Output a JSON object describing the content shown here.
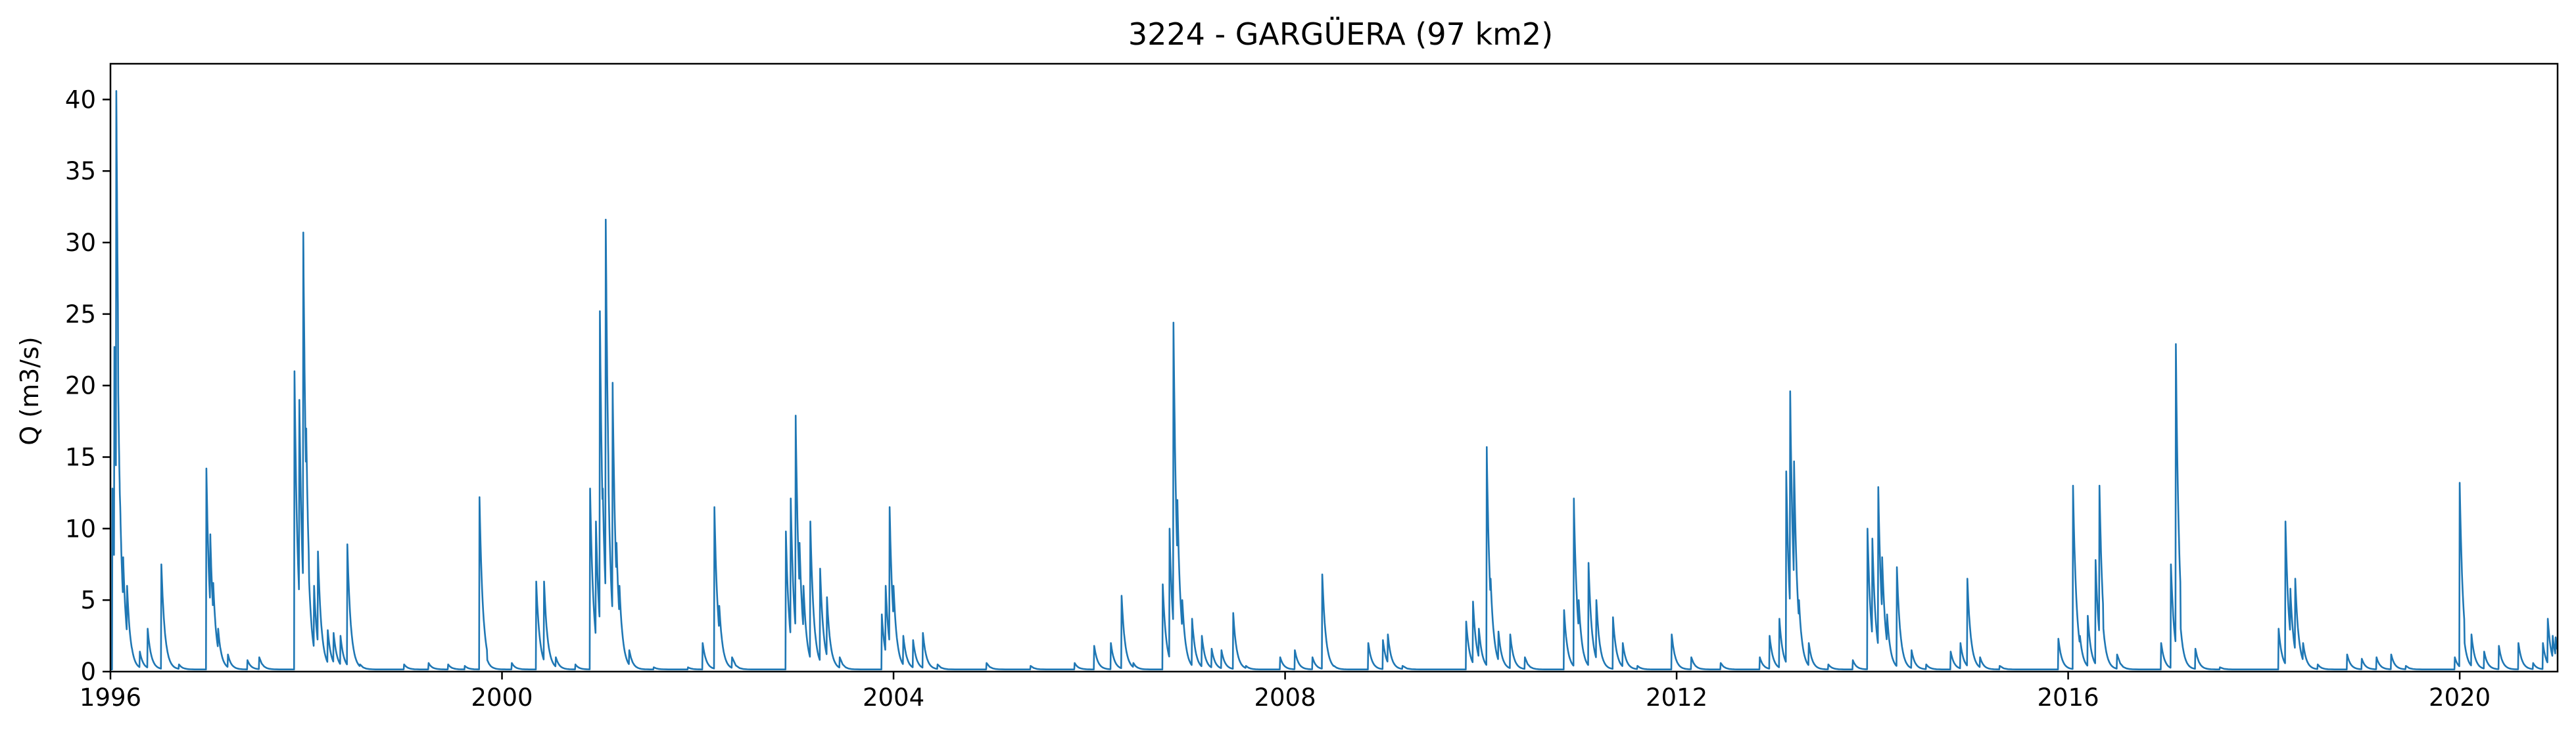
{
  "chart_data": {
    "type": "line",
    "title": "3224 - GARGÜERA (97 km2)",
    "xlabel": "",
    "ylabel": "Q (m3/s)",
    "xlim": [
      1996.0,
      2021.0
    ],
    "ylim": [
      0,
      42.5
    ],
    "x_ticks": [
      1996,
      2000,
      2004,
      2008,
      2012,
      2016,
      2020
    ],
    "x_tick_labels": [
      "1996",
      "2000",
      "2004",
      "2008",
      "2012",
      "2016",
      "2020"
    ],
    "y_ticks": [
      0,
      5,
      10,
      15,
      20,
      25,
      30,
      35,
      40
    ],
    "y_tick_labels": [
      "0",
      "5",
      "10",
      "15",
      "20",
      "25",
      "30",
      "35",
      "40"
    ],
    "grid": false,
    "legend": "none",
    "line_color": "#1f77b4",
    "peaks": [
      [
        1996.02,
        12.8
      ],
      [
        1996.04,
        22.7
      ],
      [
        1996.06,
        40.6
      ],
      [
        1996.08,
        19.4
      ],
      [
        1996.1,
        11.5
      ],
      [
        1996.13,
        8.0
      ],
      [
        1996.17,
        6.0
      ],
      [
        1996.22,
        1.6
      ],
      [
        1996.3,
        1.4
      ],
      [
        1996.38,
        3.0
      ],
      [
        1996.52,
        7.5
      ],
      [
        1996.7,
        0.5
      ],
      [
        1996.98,
        14.2
      ],
      [
        1997.02,
        9.6
      ],
      [
        1997.05,
        6.2
      ],
      [
        1997.1,
        3.0
      ],
      [
        1997.2,
        1.2
      ],
      [
        1997.4,
        0.8
      ],
      [
        1997.52,
        1.0
      ],
      [
        1997.88,
        21.0
      ],
      [
        1997.93,
        19.0
      ],
      [
        1997.97,
        30.7
      ],
      [
        1998.0,
        17.0
      ],
      [
        1998.03,
        6.3
      ],
      [
        1998.08,
        6.0
      ],
      [
        1998.12,
        8.4
      ],
      [
        1998.22,
        2.9
      ],
      [
        1998.28,
        2.7
      ],
      [
        1998.35,
        2.5
      ],
      [
        1998.42,
        8.9
      ],
      [
        1998.55,
        0.5
      ],
      [
        1999.0,
        0.5
      ],
      [
        1999.25,
        0.6
      ],
      [
        1999.45,
        0.5
      ],
      [
        1999.62,
        0.4
      ],
      [
        1999.77,
        12.2
      ],
      [
        1999.85,
        0.8
      ],
      [
        2000.1,
        0.6
      ],
      [
        2000.35,
        6.3
      ],
      [
        2000.43,
        6.3
      ],
      [
        2000.55,
        1.0
      ],
      [
        2000.75,
        0.5
      ],
      [
        2000.9,
        12.8
      ],
      [
        2000.96,
        10.5
      ],
      [
        2001.0,
        25.2
      ],
      [
        2001.03,
        12.8
      ],
      [
        2001.06,
        31.6
      ],
      [
        2001.09,
        12.5
      ],
      [
        2001.13,
        20.2
      ],
      [
        2001.17,
        9.0
      ],
      [
        2001.2,
        6.0
      ],
      [
        2001.3,
        1.5
      ],
      [
        2001.55,
        0.3
      ],
      [
        2001.9,
        0.3
      ],
      [
        2002.05,
        2.0
      ],
      [
        2002.17,
        11.5
      ],
      [
        2002.22,
        4.6
      ],
      [
        2002.35,
        1.0
      ],
      [
        2002.9,
        9.8
      ],
      [
        2002.95,
        12.1
      ],
      [
        2003.0,
        17.9
      ],
      [
        2003.04,
        9.0
      ],
      [
        2003.08,
        6.0
      ],
      [
        2003.15,
        10.5
      ],
      [
        2003.25,
        7.2
      ],
      [
        2003.32,
        5.2
      ],
      [
        2003.45,
        1.0
      ],
      [
        2003.88,
        4.0
      ],
      [
        2003.92,
        6.0
      ],
      [
        2003.96,
        11.5
      ],
      [
        2004.0,
        6.0
      ],
      [
        2004.1,
        2.5
      ],
      [
        2004.2,
        2.2
      ],
      [
        2004.3,
        2.7
      ],
      [
        2004.45,
        0.5
      ],
      [
        2004.95,
        0.6
      ],
      [
        2005.4,
        0.4
      ],
      [
        2005.85,
        0.6
      ],
      [
        2006.05,
        1.8
      ],
      [
        2006.22,
        2.0
      ],
      [
        2006.33,
        5.3
      ],
      [
        2006.45,
        0.6
      ],
      [
        2006.75,
        6.1
      ],
      [
        2006.82,
        10.0
      ],
      [
        2006.86,
        24.4
      ],
      [
        2006.9,
        12.0
      ],
      [
        2006.95,
        5.0
      ],
      [
        2007.05,
        3.7
      ],
      [
        2007.15,
        2.5
      ],
      [
        2007.25,
        1.6
      ],
      [
        2007.35,
        1.5
      ],
      [
        2007.47,
        4.1
      ],
      [
        2007.6,
        0.4
      ],
      [
        2007.95,
        1.0
      ],
      [
        2008.1,
        1.5
      ],
      [
        2008.28,
        1.0
      ],
      [
        2008.38,
        6.8
      ],
      [
        2008.5,
        0.4
      ],
      [
        2008.85,
        2.0
      ],
      [
        2009.0,
        2.2
      ],
      [
        2009.05,
        2.6
      ],
      [
        2009.2,
        0.4
      ],
      [
        2009.85,
        3.5
      ],
      [
        2009.92,
        4.9
      ],
      [
        2009.98,
        3.0
      ],
      [
        2010.06,
        15.7
      ],
      [
        2010.1,
        6.5
      ],
      [
        2010.18,
        2.8
      ],
      [
        2010.3,
        2.6
      ],
      [
        2010.45,
        1.0
      ],
      [
        2010.85,
        4.3
      ],
      [
        2010.95,
        12.1
      ],
      [
        2011.0,
        5.0
      ],
      [
        2011.1,
        7.6
      ],
      [
        2011.18,
        5.0
      ],
      [
        2011.35,
        3.8
      ],
      [
        2011.45,
        2.0
      ],
      [
        2011.6,
        0.4
      ],
      [
        2011.95,
        2.6
      ],
      [
        2012.15,
        1.0
      ],
      [
        2012.45,
        0.6
      ],
      [
        2012.85,
        1.0
      ],
      [
        2012.95,
        2.5
      ],
      [
        2013.05,
        3.7
      ],
      [
        2013.12,
        14.0
      ],
      [
        2013.16,
        19.6
      ],
      [
        2013.2,
        14.7
      ],
      [
        2013.25,
        5.0
      ],
      [
        2013.35,
        2.0
      ],
      [
        2013.55,
        0.5
      ],
      [
        2013.8,
        0.8
      ],
      [
        2013.95,
        10.0
      ],
      [
        2014.0,
        9.3
      ],
      [
        2014.06,
        12.9
      ],
      [
        2014.1,
        8.0
      ],
      [
        2014.15,
        4.0
      ],
      [
        2014.25,
        7.3
      ],
      [
        2014.4,
        1.5
      ],
      [
        2014.55,
        0.5
      ],
      [
        2014.8,
        1.4
      ],
      [
        2014.9,
        2.0
      ],
      [
        2014.97,
        6.5
      ],
      [
        2015.1,
        1.0
      ],
      [
        2015.3,
        0.4
      ],
      [
        2015.9,
        2.3
      ],
      [
        2016.05,
        13.0
      ],
      [
        2016.12,
        2.5
      ],
      [
        2016.2,
        3.9
      ],
      [
        2016.28,
        7.8
      ],
      [
        2016.32,
        13.0
      ],
      [
        2016.36,
        3.0
      ],
      [
        2016.5,
        1.2
      ],
      [
        2016.95,
        2.0
      ],
      [
        2017.05,
        7.5
      ],
      [
        2017.1,
        22.9
      ],
      [
        2017.15,
        3.0
      ],
      [
        2017.3,
        1.6
      ],
      [
        2017.55,
        0.3
      ],
      [
        2018.15,
        3.0
      ],
      [
        2018.22,
        10.5
      ],
      [
        2018.27,
        5.8
      ],
      [
        2018.32,
        6.5
      ],
      [
        2018.4,
        2.0
      ],
      [
        2018.55,
        0.5
      ],
      [
        2018.85,
        1.2
      ],
      [
        2019.0,
        0.9
      ],
      [
        2019.15,
        1.0
      ],
      [
        2019.3,
        1.2
      ],
      [
        2019.45,
        0.4
      ],
      [
        2019.95,
        1.0
      ],
      [
        2020.0,
        13.2
      ],
      [
        2020.05,
        2.0
      ],
      [
        2020.12,
        2.6
      ],
      [
        2020.25,
        1.4
      ],
      [
        2020.4,
        1.8
      ],
      [
        2020.6,
        2.0
      ],
      [
        2020.75,
        0.6
      ],
      [
        2020.85,
        2.0
      ],
      [
        2020.9,
        3.7
      ],
      [
        2020.95,
        2.5
      ],
      [
        2020.98,
        2.4
      ]
    ]
  }
}
